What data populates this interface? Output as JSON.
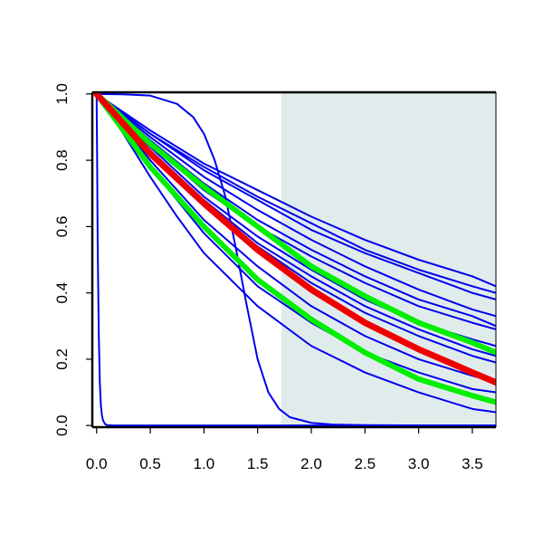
{
  "chart_data": {
    "type": "line",
    "title": "",
    "xlabel": "",
    "ylabel": "",
    "xlim": [
      -0.04,
      3.72
    ],
    "ylim": [
      -0.005,
      1.005
    ],
    "x_ticks": [
      0.0,
      0.5,
      1.0,
      1.5,
      2.0,
      2.5,
      3.0,
      3.5
    ],
    "x_tick_labels": [
      "0.0",
      "0.5",
      "1.0",
      "1.5",
      "2.0",
      "2.5",
      "3.0",
      "3.5"
    ],
    "y_ticks": [
      0.0,
      0.2,
      0.4,
      0.6,
      0.8,
      1.0
    ],
    "y_tick_labels": [
      "0.0",
      "0.2",
      "0.4",
      "0.6",
      "0.8",
      "1.0"
    ],
    "shaded_region": {
      "x_start": 1.72,
      "x_end": 3.72,
      "color": "#e0ecec"
    },
    "grid": false,
    "legend": "none",
    "series": [
      {
        "color": "#0000ee",
        "width": 2,
        "x": [
          0,
          0.5,
          1.0,
          1.5,
          2.0,
          2.5,
          3.0,
          3.5,
          3.72
        ],
        "values": [
          1.0,
          0.89,
          0.79,
          0.71,
          0.63,
          0.56,
          0.5,
          0.45,
          0.42
        ]
      },
      {
        "color": "#0000ee",
        "width": 2,
        "x": [
          0,
          0.5,
          1.0,
          1.5,
          2.0,
          2.5,
          3.0,
          3.5,
          3.72
        ],
        "values": [
          1.0,
          0.88,
          0.78,
          0.69,
          0.61,
          0.53,
          0.47,
          0.42,
          0.4
        ]
      },
      {
        "color": "#0000ee",
        "width": 2,
        "x": [
          0,
          0.5,
          1.0,
          1.5,
          2.0,
          2.5,
          3.0,
          3.5,
          3.72
        ],
        "values": [
          1.0,
          0.88,
          0.77,
          0.68,
          0.59,
          0.52,
          0.46,
          0.4,
          0.38
        ]
      },
      {
        "color": "#0000ee",
        "width": 2,
        "x": [
          0,
          0.5,
          1.0,
          1.5,
          2.0,
          2.5,
          3.0,
          3.5,
          3.72
        ],
        "values": [
          1.0,
          0.87,
          0.75,
          0.65,
          0.56,
          0.48,
          0.41,
          0.35,
          0.33
        ]
      },
      {
        "color": "#0000ee",
        "width": 2,
        "x": [
          0,
          0.5,
          1.0,
          1.5,
          2.0,
          2.5,
          3.0,
          3.5,
          3.72
        ],
        "values": [
          1.0,
          0.86,
          0.73,
          0.62,
          0.53,
          0.45,
          0.38,
          0.33,
          0.3
        ]
      },
      {
        "color": "#0000ee",
        "width": 2,
        "x": [
          0,
          0.5,
          1.0,
          1.5,
          2.0,
          2.5,
          3.0,
          3.5,
          3.72
        ],
        "values": [
          1.0,
          0.85,
          0.71,
          0.6,
          0.51,
          0.43,
          0.36,
          0.31,
          0.29
        ]
      },
      {
        "color": "#0000ee",
        "width": 2,
        "x": [
          0,
          0.5,
          1.0,
          1.5,
          2.0,
          2.5,
          3.0,
          3.5,
          3.72
        ],
        "values": [
          1.0,
          0.84,
          0.69,
          0.57,
          0.47,
          0.38,
          0.31,
          0.26,
          0.24
        ]
      },
      {
        "color": "#0000ee",
        "width": 2,
        "x": [
          0,
          0.5,
          1.0,
          1.5,
          2.0,
          2.5,
          3.0,
          3.5,
          3.72
        ],
        "values": [
          1.0,
          0.83,
          0.68,
          0.55,
          0.45,
          0.36,
          0.29,
          0.23,
          0.21
        ]
      },
      {
        "color": "#0000ee",
        "width": 2,
        "x": [
          0,
          0.5,
          1.0,
          1.5,
          2.0,
          2.5,
          3.0,
          3.5,
          3.72
        ],
        "values": [
          1.0,
          0.83,
          0.67,
          0.54,
          0.43,
          0.34,
          0.27,
          0.21,
          0.19
        ]
      },
      {
        "color": "#0000ee",
        "width": 2,
        "x": [
          0,
          0.5,
          1.0,
          1.5,
          2.0,
          2.5,
          3.0,
          3.5,
          3.72
        ],
        "values": [
          1.0,
          0.8,
          0.62,
          0.48,
          0.36,
          0.27,
          0.2,
          0.15,
          0.13
        ]
      },
      {
        "color": "#0000ee",
        "width": 2,
        "x": [
          0,
          0.5,
          1.0,
          1.5,
          2.0,
          2.5,
          3.0,
          3.5,
          3.72
        ],
        "values": [
          1.0,
          0.78,
          0.58,
          0.42,
          0.31,
          0.22,
          0.16,
          0.11,
          0.1
        ]
      },
      {
        "color": "#0000ee",
        "width": 2,
        "x": [
          0,
          0.25,
          0.5,
          0.75,
          1.0,
          1.5,
          2.0,
          2.5,
          3.0,
          3.5,
          3.72
        ],
        "values": [
          1.0,
          0.88,
          0.75,
          0.63,
          0.52,
          0.36,
          0.24,
          0.16,
          0.1,
          0.05,
          0.04
        ]
      },
      {
        "color": "#0000ee",
        "width": 2,
        "x": [
          0,
          0.25,
          0.5,
          0.75,
          0.9,
          1.0,
          1.1,
          1.2,
          1.3,
          1.4,
          1.5,
          1.6,
          1.7,
          1.8,
          2.0,
          2.2,
          2.5,
          3.0,
          3.72
        ],
        "values": [
          1.0,
          0.999,
          0.995,
          0.97,
          0.93,
          0.88,
          0.8,
          0.69,
          0.53,
          0.36,
          0.2,
          0.1,
          0.05,
          0.025,
          0.008,
          0.003,
          0.001,
          0.0,
          0.0
        ]
      },
      {
        "color": "#0000ee",
        "width": 2,
        "x": [
          0,
          0.005,
          0.01,
          0.02,
          0.03,
          0.04,
          0.05,
          0.06,
          0.08,
          0.1,
          0.15,
          3.72
        ],
        "values": [
          1.0,
          0.8,
          0.55,
          0.28,
          0.13,
          0.06,
          0.03,
          0.015,
          0.004,
          0.001,
          0.0,
          0.0
        ]
      },
      {
        "color": "#00ee00",
        "width": 6,
        "x": [
          0,
          0.5,
          1.0,
          1.5,
          2.0,
          2.5,
          3.0,
          3.5,
          3.72
        ],
        "values": [
          1.0,
          0.85,
          0.72,
          0.6,
          0.48,
          0.39,
          0.31,
          0.25,
          0.22
        ]
      },
      {
        "color": "#00ee00",
        "width": 6,
        "x": [
          0,
          0.5,
          1.0,
          1.5,
          2.0,
          2.5,
          3.0,
          3.5,
          3.72
        ],
        "values": [
          1.0,
          0.78,
          0.6,
          0.44,
          0.32,
          0.22,
          0.14,
          0.09,
          0.07
        ]
      },
      {
        "color": "#ee0000",
        "width": 7,
        "x": [
          0,
          0.5,
          1.0,
          1.5,
          2.0,
          2.5,
          3.0,
          3.5,
          3.72
        ],
        "values": [
          1.0,
          0.82,
          0.67,
          0.53,
          0.41,
          0.31,
          0.23,
          0.16,
          0.13
        ]
      }
    ]
  }
}
